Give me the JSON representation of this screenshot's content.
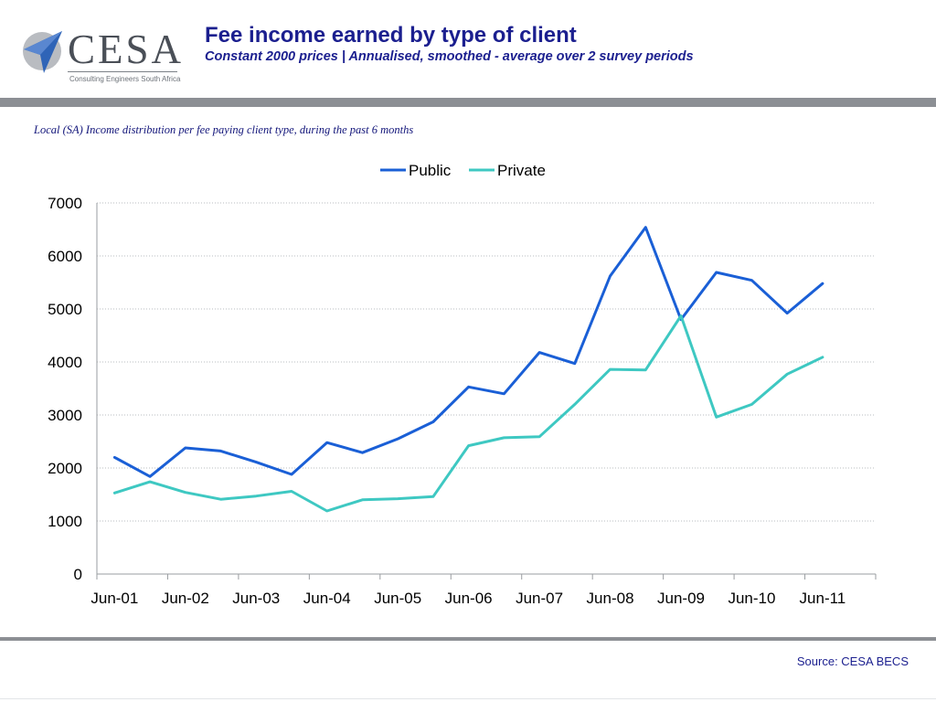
{
  "header": {
    "title": "Fee income earned by type of client",
    "subtitle": "Constant 2000 prices | Annualised, smoothed - average over 2 survey periods",
    "logo_text": "CESA",
    "logo_tagline": "Consulting Engineers South Africa"
  },
  "caption": "Local (SA) Income distribution per fee paying client type, during the past 6 months",
  "footer": {
    "source": "Source: CESA BECS"
  },
  "colors": {
    "public": "#1a5fd6",
    "private": "#3ec8c2",
    "title": "#1b1f8f",
    "rule": "#8c8f94"
  },
  "chart_data": {
    "type": "line",
    "legend_position": "top",
    "grid": true,
    "ylim": [
      0,
      7000
    ],
    "yticks": [
      0,
      1000,
      2000,
      3000,
      4000,
      5000,
      6000,
      7000
    ],
    "xtick_labels": [
      "Jun-01",
      "Jun-02",
      "Jun-03",
      "Jun-04",
      "Jun-05",
      "Jun-06",
      "Jun-07",
      "Jun-08",
      "Jun-09",
      "Jun-10",
      "Jun-11"
    ],
    "x": [
      "Dec-00",
      "Jun-01",
      "Dec-01",
      "Jun-02",
      "Dec-02",
      "Jun-03",
      "Dec-03",
      "Jun-04",
      "Dec-04",
      "Jun-05",
      "Dec-05",
      "Jun-06",
      "Dec-06",
      "Jun-07",
      "Dec-07",
      "Jun-08",
      "Dec-08",
      "Jun-09",
      "Dec-09",
      "Jun-10",
      "Dec-10"
    ],
    "series": [
      {
        "name": "Public",
        "color": "#1a5fd6",
        "values": [
          2200,
          1840,
          2380,
          2320,
          2110,
          1880,
          2480,
          2290,
          2550,
          2870,
          3530,
          3400,
          4180,
          3970,
          5620,
          6540,
          4800,
          5690,
          5540,
          4920,
          5480
        ]
      },
      {
        "name": "Private",
        "color": "#3ec8c2",
        "values": [
          1530,
          1740,
          1540,
          1410,
          1470,
          1560,
          1190,
          1400,
          1420,
          1460,
          2420,
          2570,
          2590,
          3200,
          3860,
          3850,
          4870,
          2960,
          3200,
          3770,
          4090
        ]
      }
    ]
  }
}
